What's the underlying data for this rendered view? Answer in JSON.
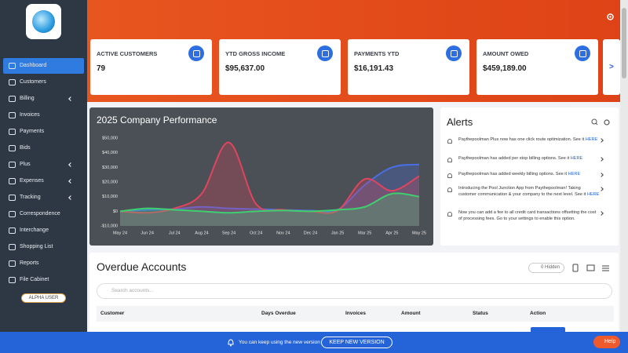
{
  "sidebar": {
    "items": [
      "Dashboard",
      "Customers",
      "Billing",
      "Invoices",
      "Payments",
      "Bids",
      "Plus",
      "Expenses",
      "Tracking",
      "Correspondence",
      "Interchange",
      "Shopping List",
      "Reports",
      "File Cabinet"
    ],
    "badge": "ALPHA USER"
  },
  "cards": [
    {
      "label": "ACTIVE CUSTOMERS",
      "value": "79"
    },
    {
      "label": "YTD GROSS INCOME",
      "value": "$95,637.00"
    },
    {
      "label": "PAYMENTS YTD",
      "value": "$16,191.43"
    },
    {
      "label": "AMOUNT OWED",
      "value": "$459,189.00"
    }
  ],
  "cards_more": ">",
  "chart_data": {
    "type": "line",
    "title": "2025 Company Performance",
    "categories": [
      "May 24",
      "Jun 24",
      "Jul 24",
      "Aug 24",
      "Sep 24",
      "Oct 24",
      "Nov 24",
      "Dec 24",
      "Jan 25",
      "Mar 25",
      "Apr 25",
      "May 25"
    ],
    "series": [
      {
        "color": "#4a6fe3",
        "values": [
          0,
          1000,
          1500,
          3000,
          2000,
          1500,
          1000,
          500,
          1000,
          18000,
          30000,
          32000
        ]
      },
      {
        "color": "#e0455e",
        "values": [
          0,
          -1000,
          2000,
          12000,
          47000,
          5000,
          1000,
          0,
          500,
          22000,
          14000,
          24000
        ]
      },
      {
        "color": "#3ecf6e",
        "values": [
          0,
          2000,
          1000,
          0,
          -1000,
          0,
          500,
          0,
          1000,
          3000,
          12000,
          10000
        ]
      }
    ],
    "ylim": [
      -10000,
      50000
    ],
    "yticks": [
      {
        "value": -10000,
        "label": "-$10,000"
      },
      {
        "value": 0,
        "label": "$0"
      },
      {
        "value": 10000,
        "label": "$10,000"
      },
      {
        "value": 20000,
        "label": "$20,000"
      },
      {
        "value": 30000,
        "label": "$30,000"
      },
      {
        "value": 40000,
        "label": "$40,000"
      },
      {
        "value": 50000,
        "label": "$50,000"
      }
    ],
    "grid": false
  },
  "alerts": {
    "title": "Alerts",
    "items": [
      {
        "text": "Paythepoolman Plus now has one click route optimization. See it",
        "link": "HERE"
      },
      {
        "text": "Paythepoolman has added per stop billing options. See it",
        "link": "HERE"
      },
      {
        "text": "Paythepoolman has added weekly billing options. See it",
        "link": "HERE"
      },
      {
        "text": "Introducing the Pool Junction App from Paythepoolman! Taking customer communication & your company to the next level. See it",
        "link": "HERE"
      },
      {
        "text": "Now you can add a fee to all credit card transactions offsetting the cost of processing fees. Go to your settings to enable this option.",
        "link": null
      }
    ]
  },
  "overdue": {
    "title": "Overdue Accounts",
    "hidden": "0 Hidden",
    "search": "Search accounts...",
    "columns": [
      "Customer",
      "Days Overdue",
      "Invoices",
      "Amount",
      "Status",
      "Action"
    ]
  },
  "banner": {
    "text": "You can keep using the new version",
    "button": "KEEP NEW VERSION",
    "help": "Help"
  }
}
